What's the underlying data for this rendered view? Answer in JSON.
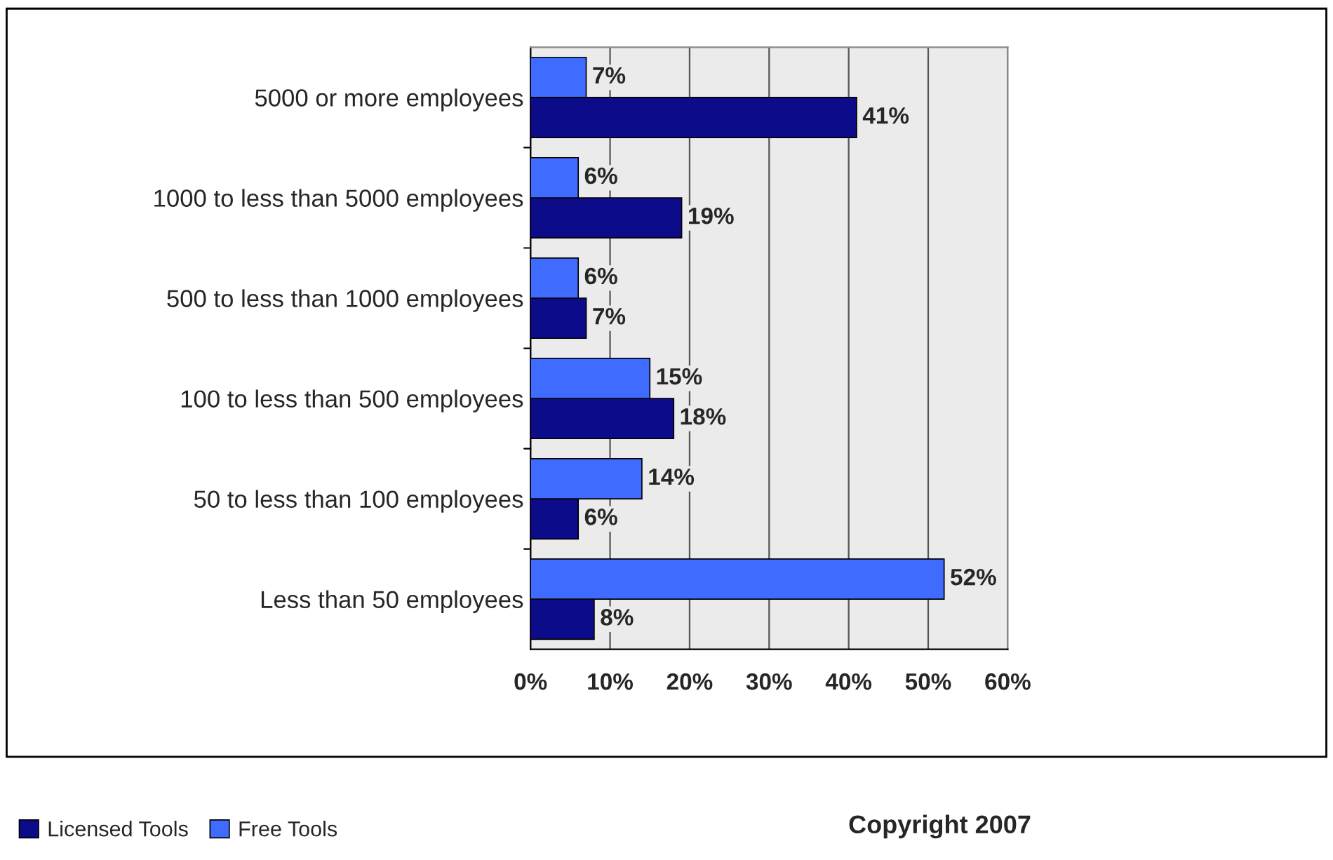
{
  "chart_data": {
    "type": "bar",
    "orientation": "horizontal",
    "categories": [
      "5000 or more employees",
      "1000 to less than 5000 employees",
      "500 to less than 1000 employees",
      "100 to less than 500 employees",
      "50 to less than 100 employees",
      "Less than 50 employees"
    ],
    "series": [
      {
        "name": "Licensed Tools",
        "color": "#0c0c8a",
        "values": [
          41,
          19,
          7,
          18,
          6,
          8
        ],
        "value_labels": [
          "41%",
          "19%",
          "7%",
          "18%",
          "6%",
          "8%"
        ]
      },
      {
        "name": "Free Tools",
        "color": "#3f6bff",
        "values": [
          7,
          6,
          6,
          15,
          14,
          52
        ],
        "value_labels": [
          "7%",
          "6%",
          "6%",
          "15%",
          "14%",
          "52%"
        ]
      }
    ],
    "xlim": [
      0,
      60
    ],
    "xticks": [
      {
        "value": 0,
        "label": "0%"
      },
      {
        "value": 10,
        "label": "10%"
      },
      {
        "value": 20,
        "label": "20%"
      },
      {
        "value": 30,
        "label": "30%"
      },
      {
        "value": 40,
        "label": "40%"
      },
      {
        "value": 50,
        "label": "50%"
      },
      {
        "value": 60,
        "label": "60%"
      }
    ],
    "grid": "x",
    "legend": "bottom left",
    "annotations": [
      "Copyright 2007"
    ]
  }
}
